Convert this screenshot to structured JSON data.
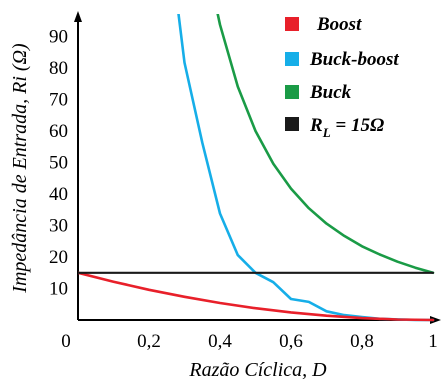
{
  "chart_data": {
    "type": "line",
    "xlabel": "Razão Cíclica, D",
    "ylabel": "Impedância de Entrada, Ri (Ω)",
    "xlim": [
      0,
      1
    ],
    "ylim": [
      0,
      100
    ],
    "origin_label": "0",
    "x_ticks": [
      "0,2",
      "0,4",
      "0,6",
      "0,8",
      "1"
    ],
    "x_tick_values": [
      0.2,
      0.4,
      0.6,
      0.8,
      1.0
    ],
    "y_ticks": [
      "10",
      "20",
      "30",
      "40",
      "50",
      "60",
      "70",
      "80",
      "90"
    ],
    "y_tick_values": [
      10,
      20,
      30,
      40,
      50,
      60,
      70,
      80,
      90
    ],
    "grid": false,
    "legend_position": "top-right",
    "series": [
      {
        "name": "Boost",
        "color": "#e8202a",
        "x": [
          0,
          0.1,
          0.2,
          0.3,
          0.4,
          0.5,
          0.6,
          0.7,
          0.8,
          0.9,
          1.0
        ],
        "y": [
          15,
          12.15,
          9.6,
          7.35,
          5.4,
          3.75,
          2.4,
          1.35,
          0.6,
          0.15,
          0
        ]
      },
      {
        "name": "Buck-boost",
        "color": "#16aee8",
        "x": [
          0.27,
          0.3,
          0.35,
          0.4,
          0.45,
          0.5,
          0.55,
          0.6,
          0.65,
          0.7,
          0.75,
          0.8,
          0.85,
          0.9,
          0.95,
          1.0
        ],
        "y": [
          109.0,
          81.7,
          56.3,
          33.8,
          20.6,
          15.0,
          12.0,
          6.67,
          5.75,
          2.76,
          1.56,
          0.94,
          0.39,
          0.19,
          0.04,
          0
        ]
      },
      {
        "name": "Buck",
        "color": "#1a9b46",
        "x": [
          0.37,
          0.4,
          0.45,
          0.5,
          0.55,
          0.6,
          0.65,
          0.7,
          0.75,
          0.8,
          0.85,
          0.9,
          0.95,
          1.0
        ],
        "y": [
          109.6,
          93.75,
          74.1,
          60.0,
          49.6,
          41.7,
          35.5,
          30.6,
          26.7,
          23.4,
          20.8,
          18.5,
          16.6,
          15.0
        ]
      },
      {
        "name": "R_L = 15Ω",
        "legend_main": "R",
        "legend_sub": "L",
        "legend_tail": " = 15Ω",
        "color": "#1a1a1a",
        "x": [
          0,
          1
        ],
        "y": [
          15,
          15
        ]
      }
    ]
  }
}
